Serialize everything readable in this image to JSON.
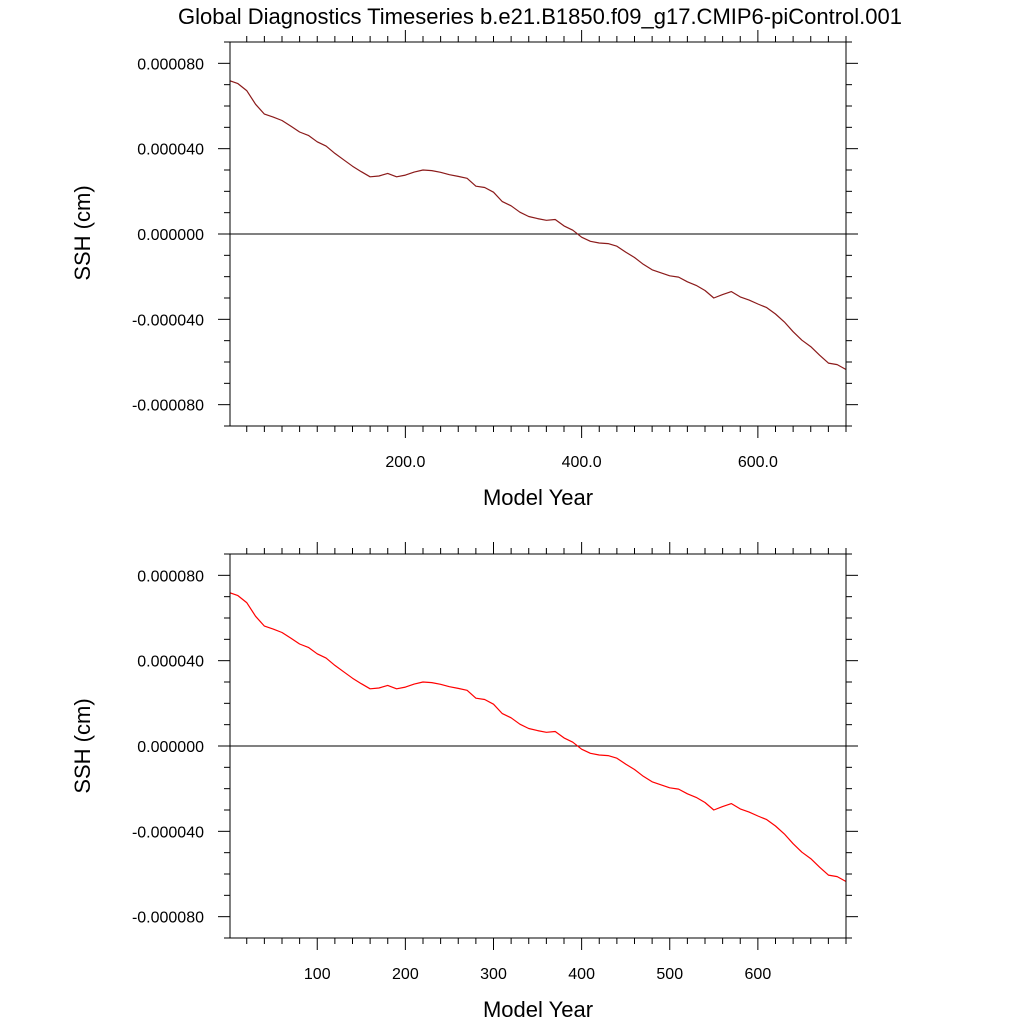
{
  "title": "Global Diagnostics Timeseries b.e21.B1850.f09_g17.CMIP6-piControl.001",
  "colors": {
    "top_series": "#8b1a1a",
    "bottom_series": "#ff0000",
    "zero_line": "#000000"
  },
  "chart_data": [
    {
      "type": "line",
      "xlabel": "Model Year",
      "ylabel": "SSH (cm)",
      "xlim": [
        1,
        700
      ],
      "ylim": [
        -9e-05,
        9e-05
      ],
      "x_ticks": [
        200,
        400,
        600
      ],
      "x_tick_labels": [
        "200.0",
        "400.0",
        "600.0"
      ],
      "x_minor_step": 20,
      "y_ticks": [
        8e-05,
        4e-05,
        0,
        -4e-05,
        -8e-05
      ],
      "y_tick_labels": [
        "0.000080",
        "0.000040",
        "0.000000",
        "-0.000040",
        "-0.000080"
      ],
      "y_minor_step": 1e-05,
      "reference_line": 0,
      "series": [
        {
          "name": "SSH",
          "color": "#8b1a1a",
          "x": [
            1,
            10,
            20,
            30,
            40,
            50,
            60,
            70,
            80,
            90,
            100,
            110,
            120,
            130,
            140,
            150,
            160,
            170,
            180,
            190,
            200,
            210,
            220,
            230,
            240,
            250,
            260,
            270,
            280,
            290,
            300,
            310,
            320,
            330,
            340,
            350,
            360,
            370,
            380,
            390,
            400,
            410,
            420,
            430,
            440,
            450,
            460,
            470,
            480,
            490,
            500,
            510,
            520,
            530,
            540,
            550,
            560,
            570,
            580,
            590,
            600,
            610,
            620,
            630,
            640,
            650,
            660,
            670,
            680,
            690,
            700
          ],
          "values": [
            7.18e-05,
            7.05e-05,
            6.72e-05,
            6.08e-05,
            5.62e-05,
            5.48e-05,
            5.32e-05,
            5.06e-05,
            4.78e-05,
            4.62e-05,
            4.32e-05,
            4.12e-05,
            3.78e-05,
            3.48e-05,
            3.18e-05,
            2.92e-05,
            2.68e-05,
            2.72e-05,
            2.84e-05,
            2.68e-05,
            2.76e-05,
            2.9e-05,
            3e-05,
            2.97e-05,
            2.89e-05,
            2.78e-05,
            2.7e-05,
            2.61e-05,
            2.24e-05,
            2.18e-05,
            1.96e-05,
            1.52e-05,
            1.32e-05,
            1.02e-05,
            8.2e-06,
            7.2e-06,
            6.4e-06,
            6.8e-06,
            3.8e-06,
            1.8e-06,
            -1.5e-06,
            -3.4e-06,
            -4.2e-06,
            -4.5e-06,
            -5.7e-06,
            -8.5e-06,
            -1.1e-05,
            -1.42e-05,
            -1.68e-05,
            -1.82e-05,
            -1.96e-05,
            -2.02e-05,
            -2.24e-05,
            -2.41e-05,
            -2.65e-05,
            -3e-05,
            -2.84e-05,
            -2.7e-05,
            -2.95e-05,
            -3.1e-05,
            -3.28e-05,
            -3.45e-05,
            -3.75e-05,
            -4.12e-05,
            -4.58e-05,
            -4.98e-05,
            -5.28e-05,
            -5.68e-05,
            -6.05e-05,
            -6.12e-05,
            -6.35e-05
          ]
        }
      ]
    },
    {
      "type": "line",
      "xlabel": "Model Year",
      "ylabel": "SSH (cm)",
      "xlim": [
        1,
        700
      ],
      "ylim": [
        -9e-05,
        9e-05
      ],
      "x_ticks": [
        100,
        200,
        300,
        400,
        500,
        600
      ],
      "x_tick_labels": [
        "100",
        "200",
        "300",
        "400",
        "500",
        "600"
      ],
      "x_minor_step": 20,
      "y_ticks": [
        8e-05,
        4e-05,
        0,
        -4e-05,
        -8e-05
      ],
      "y_tick_labels": [
        "0.000080",
        "0.000040",
        "0.000000",
        "-0.000040",
        "-0.000080"
      ],
      "y_minor_step": 1e-05,
      "reference_line": 0,
      "series": [
        {
          "name": "SSH",
          "color": "#ff0000",
          "x": [
            1,
            10,
            20,
            30,
            40,
            50,
            60,
            70,
            80,
            90,
            100,
            110,
            120,
            130,
            140,
            150,
            160,
            170,
            180,
            190,
            200,
            210,
            220,
            230,
            240,
            250,
            260,
            270,
            280,
            290,
            300,
            310,
            320,
            330,
            340,
            350,
            360,
            370,
            380,
            390,
            400,
            410,
            420,
            430,
            440,
            450,
            460,
            470,
            480,
            490,
            500,
            510,
            520,
            530,
            540,
            550,
            560,
            570,
            580,
            590,
            600,
            610,
            620,
            630,
            640,
            650,
            660,
            670,
            680,
            690,
            700
          ],
          "values": [
            7.18e-05,
            7.05e-05,
            6.72e-05,
            6.08e-05,
            5.62e-05,
            5.48e-05,
            5.32e-05,
            5.06e-05,
            4.78e-05,
            4.62e-05,
            4.32e-05,
            4.12e-05,
            3.78e-05,
            3.48e-05,
            3.18e-05,
            2.92e-05,
            2.68e-05,
            2.72e-05,
            2.84e-05,
            2.68e-05,
            2.76e-05,
            2.9e-05,
            3e-05,
            2.97e-05,
            2.89e-05,
            2.78e-05,
            2.7e-05,
            2.61e-05,
            2.24e-05,
            2.18e-05,
            1.96e-05,
            1.52e-05,
            1.32e-05,
            1.02e-05,
            8.2e-06,
            7.2e-06,
            6.4e-06,
            6.8e-06,
            3.8e-06,
            1.8e-06,
            -1.5e-06,
            -3.4e-06,
            -4.2e-06,
            -4.5e-06,
            -5.7e-06,
            -8.5e-06,
            -1.1e-05,
            -1.42e-05,
            -1.68e-05,
            -1.82e-05,
            -1.96e-05,
            -2.02e-05,
            -2.24e-05,
            -2.41e-05,
            -2.65e-05,
            -3e-05,
            -2.84e-05,
            -2.7e-05,
            -2.95e-05,
            -3.1e-05,
            -3.28e-05,
            -3.45e-05,
            -3.75e-05,
            -4.12e-05,
            -4.58e-05,
            -4.98e-05,
            -5.28e-05,
            -5.68e-05,
            -6.05e-05,
            -6.12e-05,
            -6.35e-05
          ]
        }
      ]
    }
  ]
}
